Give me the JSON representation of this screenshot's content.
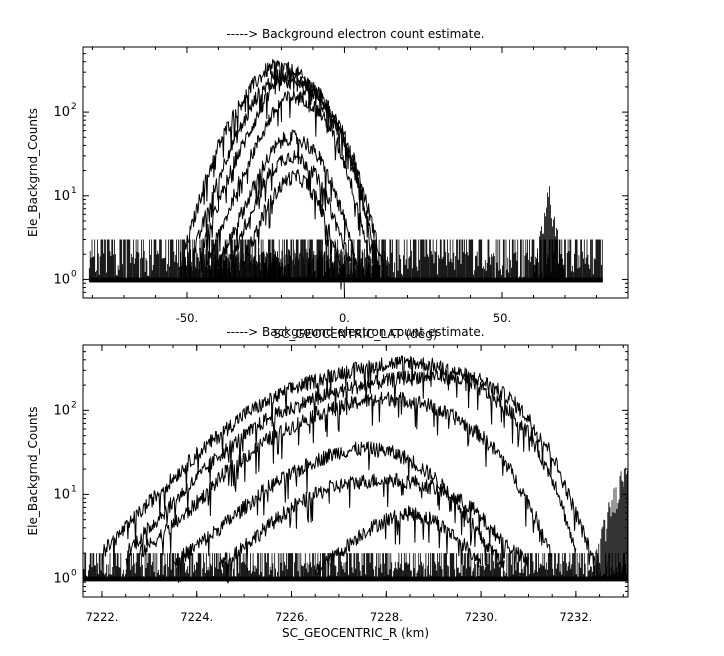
{
  "chart_data": [
    {
      "type": "line",
      "title": "-----> Background electron count estimate.",
      "xlabel": "SC_GEOCENTRIC_LAT (deg)",
      "ylabel": "Ele_Backgrnd_Counts",
      "xlim": [
        -83,
        90
      ],
      "ylim": [
        0.6,
        600
      ],
      "yscale": "log",
      "grid": false,
      "x_tick_labels": [
        {
          "value": -50,
          "label": "-50."
        },
        {
          "value": 0,
          "label": "0."
        },
        {
          "value": 50,
          "label": "50."
        }
      ],
      "y_tick_labels": [
        {
          "value": 1,
          "label": "10^0"
        },
        {
          "value": 10,
          "label": "10^1"
        },
        {
          "value": 100,
          "label": "10^2"
        }
      ],
      "noise_floor": {
        "x_range": [
          -81,
          82
        ],
        "low": 1,
        "high": 3
      },
      "hump_bins": {
        "x_range": [
          -52,
          14
        ],
        "high": 2
      },
      "spike": {
        "x_range": [
          60,
          70
        ],
        "peak": 12
      },
      "series": [
        {
          "x": [
            -51,
            -45,
            -40,
            -35,
            -30,
            -25,
            -22,
            -20,
            -15,
            -10,
            -5,
            0,
            5,
            8,
            11
          ],
          "values": [
            2,
            12,
            40,
            95,
            190,
            310,
            360,
            350,
            290,
            200,
            110,
            45,
            12,
            4,
            1.5
          ]
        },
        {
          "x": [
            -48,
            -42,
            -37,
            -32,
            -28,
            -23,
            -20,
            -17,
            -12,
            -7,
            -2,
            3,
            8,
            12
          ],
          "values": [
            2,
            10,
            32,
            75,
            150,
            250,
            285,
            270,
            220,
            150,
            75,
            28,
            6,
            1.5
          ]
        },
        {
          "x": [
            -46,
            -40,
            -35,
            -30,
            -26,
            -22,
            -19,
            -15,
            -10,
            -5,
            0,
            5,
            9
          ],
          "values": [
            2,
            8,
            25,
            60,
            120,
            200,
            230,
            215,
            165,
            100,
            45,
            12,
            2
          ]
        },
        {
          "x": [
            -44,
            -38,
            -33,
            -28,
            -24,
            -20,
            -17,
            -12,
            -8,
            -4,
            0,
            5,
            8
          ],
          "values": [
            1.5,
            5,
            16,
            40,
            80,
            135,
            155,
            140,
            100,
            60,
            25,
            6,
            1.5
          ]
        },
        {
          "x": [
            -40,
            -35,
            -30,
            -26,
            -22,
            -19,
            -16,
            -12,
            -8,
            -4,
            0,
            4
          ],
          "values": [
            1.5,
            4,
            10,
            22,
            38,
            48,
            50,
            42,
            28,
            14,
            5,
            1.5
          ]
        },
        {
          "x": [
            -36,
            -32,
            -28,
            -24,
            -20,
            -17,
            -14,
            -10,
            -6,
            -2,
            2
          ],
          "values": [
            1.5,
            4,
            9,
            18,
            27,
            30,
            28,
            20,
            10,
            4,
            1.5
          ]
        },
        {
          "x": [
            -33,
            -29,
            -25,
            -21,
            -18,
            -15,
            -12,
            -8,
            -4,
            0
          ],
          "values": [
            1.5,
            3,
            7,
            12,
            16,
            17,
            14,
            8,
            3,
            1.2
          ]
        }
      ]
    },
    {
      "type": "line",
      "title": "-----> Background electron count estimate.",
      "xlabel": "SC_GEOCENTRIC_R (km)",
      "ylabel": "Ele_Backgrnd_Counts",
      "xlim": [
        7221.6,
        7233.1
      ],
      "ylim": [
        0.6,
        600
      ],
      "yscale": "log",
      "grid": false,
      "x_tick_labels": [
        {
          "value": 7222,
          "label": "7222."
        },
        {
          "value": 7224,
          "label": "7224."
        },
        {
          "value": 7226,
          "label": "7226."
        },
        {
          "value": 7228,
          "label": "7228."
        },
        {
          "value": 7230,
          "label": "7230."
        },
        {
          "value": 7232,
          "label": "7232."
        }
      ],
      "y_tick_labels": [
        {
          "value": 1,
          "label": "10^0"
        },
        {
          "value": 10,
          "label": "10^1"
        },
        {
          "value": 100,
          "label": "10^2"
        }
      ],
      "noise_floor": {
        "x_range": [
          7221.6,
          7233.1
        ],
        "low": 1,
        "high": 2
      },
      "edge_rise": {
        "x": [
          7232.4,
          7232.7,
          7233.0,
          7233.1
        ],
        "values": [
          1.5,
          6,
          18,
          28
        ]
      },
      "series": [
        {
          "x": [
            7222.0,
            7223.0,
            7224.0,
            7225.0,
            7226.0,
            7227.0,
            7228.0,
            7228.5,
            7229.0,
            7230.0,
            7230.6,
            7231.0,
            7231.5,
            7232.0,
            7232.4
          ],
          "values": [
            2,
            8,
            30,
            90,
            180,
            280,
            360,
            380,
            340,
            230,
            140,
            80,
            30,
            6,
            1.5
          ]
        },
        {
          "x": [
            7222.5,
            7223.5,
            7224.5,
            7225.5,
            7226.5,
            7227.5,
            7228.5,
            7229.0,
            7229.5,
            7230.0,
            7230.5,
            7231.0,
            7231.6,
            7232.0
          ],
          "values": [
            2,
            8,
            30,
            80,
            140,
            200,
            250,
            260,
            240,
            180,
            110,
            55,
            12,
            2
          ]
        },
        {
          "x": [
            7222.8,
            7223.8,
            7224.6,
            7225.5,
            7226.5,
            7227.5,
            7228.2,
            7228.8,
            7229.5,
            7230.0,
            7230.5,
            7231.0,
            7231.5
          ],
          "values": [
            2,
            6,
            18,
            45,
            90,
            130,
            140,
            120,
            80,
            50,
            25,
            8,
            2
          ]
        },
        {
          "x": [
            7223.5,
            7224.5,
            7225.5,
            7226.5,
            7227.0,
            7227.5,
            7228.0,
            7228.5,
            7229.0,
            7229.5,
            7230.0,
            7230.5
          ],
          "values": [
            1.5,
            4,
            12,
            25,
            32,
            35,
            33,
            26,
            16,
            8,
            3,
            1.5
          ]
        },
        {
          "x": [
            7224.5,
            7225.2,
            7226.0,
            7226.8,
            7227.4,
            7228.0,
            7228.6,
            7229.2,
            7229.8,
            7230.4,
            7231.0
          ],
          "values": [
            1.5,
            3,
            7,
            12,
            14,
            15,
            14,
            11,
            7,
            3,
            1.5
          ]
        },
        {
          "x": [
            7226.5,
            7227.0,
            7227.5,
            7228.0,
            7228.5,
            7229.0,
            7229.5,
            7230.0
          ],
          "values": [
            1.2,
            2,
            3.5,
            5,
            6,
            5,
            3,
            1.5
          ]
        }
      ]
    }
  ]
}
